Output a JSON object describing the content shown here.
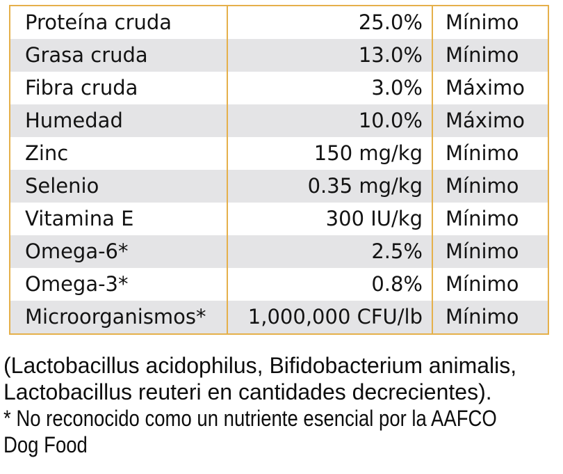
{
  "colors": {
    "table_border": "#E5B04A",
    "row_stripe": "#E4E4E6",
    "text": "#131313"
  },
  "table": {
    "rows": [
      {
        "nutrient": "Proteína cruda",
        "value": "25.0%",
        "qualifier": "Mínimo"
      },
      {
        "nutrient": "Grasa cruda",
        "value": "13.0%",
        "qualifier": "Mínimo"
      },
      {
        "nutrient": "Fibra cruda",
        "value": "3.0%",
        "qualifier": "Máximo"
      },
      {
        "nutrient": "Humedad",
        "value": "10.0%",
        "qualifier": "Máximo"
      },
      {
        "nutrient": "Zinc",
        "value": "150 mg/kg",
        "qualifier": "Mínimo"
      },
      {
        "nutrient": "Selenio",
        "value": "0.35 mg/kg",
        "qualifier": "Mínimo"
      },
      {
        "nutrient": "Vitamina E",
        "value": "300 IU/kg",
        "qualifier": "Mínimo"
      },
      {
        "nutrient": "Omega-6*",
        "value": "2.5%",
        "qualifier": "Mínimo"
      },
      {
        "nutrient": "Omega-3*",
        "value": "0.8%",
        "qualifier": "Mínimo"
      },
      {
        "nutrient": "Microorganismos*",
        "value": "1,000,000 CFU/lb",
        "qualifier": "Mínimo"
      }
    ]
  },
  "footnotes": {
    "probiotics_line1": "(Lactobacillus acidophilus, Bifidobacterium animalis,",
    "probiotics_line2": "Lactobacillus reuteri en cantidades decrecientes).",
    "aafco_line1": "* No reconocido como un nutriente esencial por la AAFCO",
    "aafco_line2": "Dog Food"
  }
}
